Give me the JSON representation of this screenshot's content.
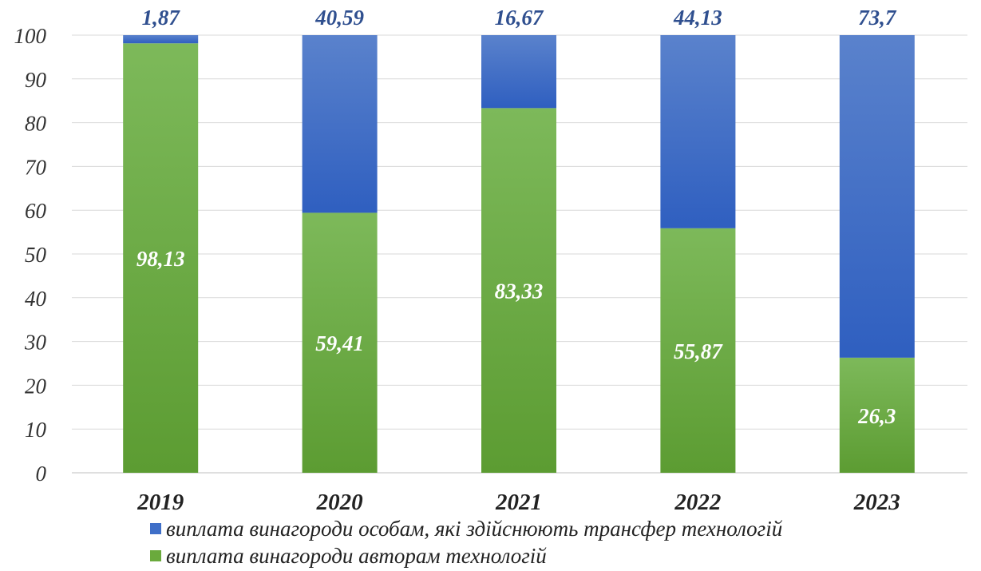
{
  "chart_data": {
    "type": "bar",
    "stacked": true,
    "categories": [
      "2019",
      "2020",
      "2021",
      "2022",
      "2023"
    ],
    "series": [
      {
        "name": "виплата винагороди авторам технологій",
        "color": "#6aaa3c",
        "values": [
          98.13,
          59.41,
          83.33,
          55.87,
          26.3
        ],
        "value_labels": [
          "98,13",
          "59,41",
          "83,33",
          "55,87",
          "26,3"
        ]
      },
      {
        "name": "виплата винагороди особам, які здійснюють трансфер технологій",
        "color": "#3f6fc8",
        "values": [
          1.87,
          40.59,
          16.67,
          44.13,
          73.7
        ],
        "value_labels": [
          "1,87",
          "40,59",
          "16,67",
          "44,13",
          "73,7"
        ]
      }
    ],
    "yticks": [
      "0",
      "10",
      "20",
      "30",
      "40",
      "50",
      "60",
      "70",
      "80",
      "90",
      "100"
    ],
    "ylim": [
      0,
      100
    ],
    "grid": true,
    "legend_position": "bottom"
  }
}
